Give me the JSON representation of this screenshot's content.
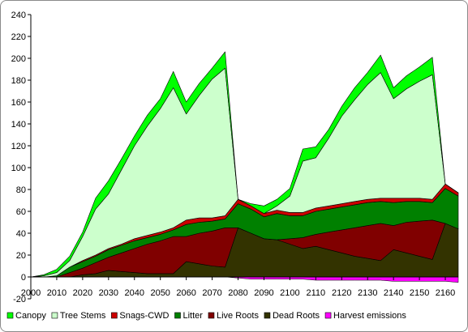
{
  "chart_data": {
    "type": "area",
    "stacked": true,
    "title": "",
    "xlabel": "",
    "ylabel": "",
    "xlim": [
      2000,
      2165
    ],
    "ylim": [
      -20,
      240
    ],
    "x_ticks": [
      2000,
      2010,
      2020,
      2030,
      2040,
      2050,
      2060,
      2070,
      2080,
      2090,
      2100,
      2110,
      2120,
      2130,
      2140,
      2150,
      2160
    ],
    "y_ticks": [
      -20,
      0,
      20,
      40,
      60,
      80,
      100,
      120,
      140,
      160,
      180,
      200,
      220,
      240
    ],
    "grid": false,
    "legend_position": "bottom",
    "x": [
      2000,
      2005,
      2010,
      2015,
      2020,
      2025,
      2030,
      2035,
      2040,
      2045,
      2050,
      2055,
      2060,
      2065,
      2070,
      2075,
      2080,
      2085,
      2090,
      2095,
      2100,
      2105,
      2110,
      2115,
      2120,
      2125,
      2130,
      2135,
      2140,
      2145,
      2150,
      2155,
      2160,
      2165
    ],
    "negative_series": {
      "name": "Harvest emissions",
      "color": "#ff00ff",
      "values": [
        0,
        0,
        0,
        0,
        0,
        0,
        0,
        0,
        0,
        0,
        0,
        0,
        0,
        0,
        0,
        0,
        -1,
        -2,
        -2,
        -2,
        -2,
        -2,
        -3,
        -3,
        -3,
        -3,
        -3,
        -3,
        -4,
        -4,
        -4,
        -4,
        -4,
        -5
      ]
    },
    "series": [
      {
        "name": "Dead Roots",
        "color": "#333300",
        "values": [
          0,
          0,
          0,
          0,
          2,
          3,
          6,
          5,
          4,
          3,
          3,
          3,
          14,
          12,
          10,
          9,
          45,
          40,
          35,
          34,
          30,
          26,
          28,
          25,
          22,
          19,
          17,
          15,
          25,
          22,
          19,
          16,
          49,
          44
        ]
      },
      {
        "name": "Live Roots",
        "color": "#800000",
        "values": [
          0,
          0,
          0,
          4,
          6,
          10,
          12,
          17,
          22,
          27,
          30,
          34,
          23,
          28,
          32,
          36,
          0,
          0,
          0,
          0,
          5,
          10,
          11,
          16,
          21,
          26,
          30,
          34,
          22,
          28,
          32,
          36,
          0,
          0
        ]
      },
      {
        "name": "Litter",
        "color": "#008000",
        "values": [
          0,
          0,
          1,
          5,
          6,
          6,
          7,
          7,
          7,
          6,
          6,
          6,
          11,
          10,
          9,
          8,
          22,
          22,
          20,
          24,
          21,
          20,
          21,
          21,
          21,
          21,
          21,
          20,
          21,
          19,
          18,
          16,
          32,
          30
        ]
      },
      {
        "name": "Snags-CWD",
        "color": "#cc0000",
        "values": [
          0,
          0,
          0,
          0,
          1,
          1,
          1,
          1,
          2,
          2,
          2,
          2,
          4,
          4,
          3,
          3,
          4,
          3,
          3,
          3,
          3,
          3,
          3,
          3,
          3,
          3,
          3,
          3,
          4,
          3,
          3,
          3,
          4,
          3
        ]
      },
      {
        "name": "Tree Stems",
        "color": "#ccffcc",
        "values": [
          0,
          1,
          3,
          6,
          22,
          42,
          50,
          68,
          85,
          100,
          113,
          128,
          97,
          112,
          127,
          135,
          0,
          0,
          0,
          4,
          15,
          47,
          46,
          62,
          80,
          93,
          105,
          115,
          91,
          100,
          107,
          114,
          0,
          0
        ]
      },
      {
        "name": "Canopy",
        "color": "#00ff00",
        "values": [
          0,
          1,
          3,
          4,
          4,
          10,
          12,
          10,
          9,
          10,
          9,
          15,
          11,
          11,
          10,
          15,
          0,
          2,
          7,
          6,
          7,
          11,
          10,
          8,
          9,
          11,
          11,
          16,
          10,
          12,
          13,
          16,
          0,
          0
        ]
      }
    ],
    "legend": [
      "Canopy",
      "Tree Stems",
      "Snags-CWD",
      "Litter",
      "Live Roots",
      "Dead Roots",
      "Harvest emissions"
    ]
  }
}
